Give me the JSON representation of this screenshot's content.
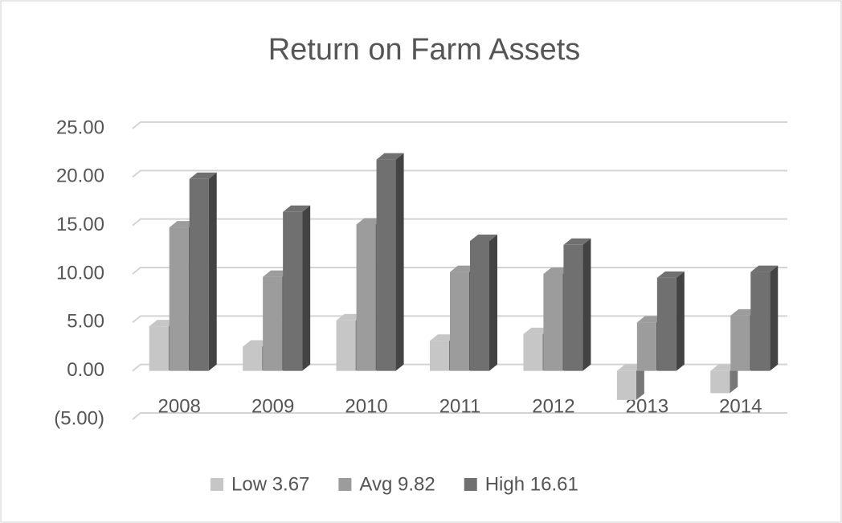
{
  "chart_data": {
    "type": "bar3d",
    "title": "Return on Farm Assets",
    "categories": [
      "2008",
      "2009",
      "2010",
      "2011",
      "2012",
      "2013",
      "2014"
    ],
    "series": [
      {
        "name": "Low 3.67",
        "color": "#c6c6c6",
        "values": [
          4.6,
          2.5,
          5.2,
          3.1,
          3.8,
          -3.0,
          -2.3
        ]
      },
      {
        "name": "Avg 9.82",
        "color": "#9c9c9c",
        "values": [
          14.8,
          9.7,
          15.1,
          10.2,
          10.0,
          5.0,
          5.7
        ]
      },
      {
        "name": "High 16.61",
        "color": "#707070",
        "values": [
          19.8,
          16.4,
          21.8,
          13.4,
          13.0,
          9.6,
          10.2
        ]
      }
    ],
    "ylim": [
      -5,
      25
    ],
    "yticks": [
      {
        "value": -5,
        "label": "(5.00)"
      },
      {
        "value": 0,
        "label": "0.00"
      },
      {
        "value": 5,
        "label": "5.00"
      },
      {
        "value": 10,
        "label": "10.00"
      },
      {
        "value": 15,
        "label": "15.00"
      },
      {
        "value": 20,
        "label": "20.00"
      },
      {
        "value": 25,
        "label": "25.00"
      }
    ],
    "grid": true,
    "legend": "bottom"
  }
}
